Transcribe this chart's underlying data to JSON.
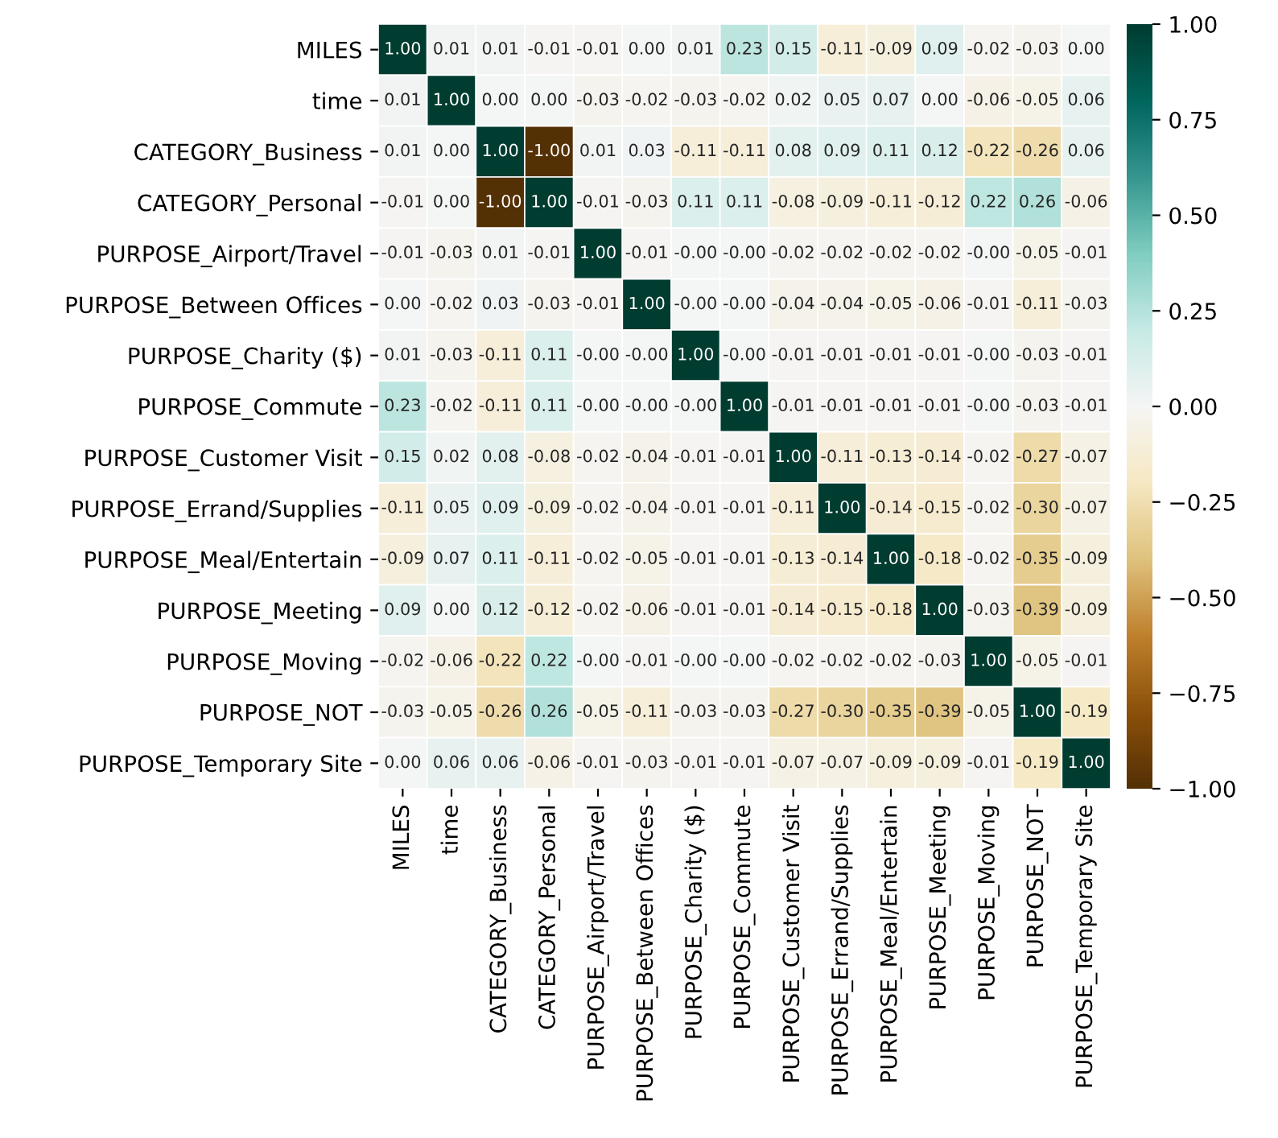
{
  "chart_data": {
    "type": "heatmap",
    "categories": [
      "MILES",
      "time",
      "CATEGORY_Business",
      "CATEGORY_Personal",
      "PURPOSE_Airport/Travel",
      "PURPOSE_Between Offices",
      "PURPOSE_Charity ($)",
      "PURPOSE_Commute",
      "PURPOSE_Customer Visit",
      "PURPOSE_Errand/Supplies",
      "PURPOSE_Meal/Entertain",
      "PURPOSE_Meeting",
      "PURPOSE_Moving",
      "PURPOSE_NOT",
      "PURPOSE_Temporary Site"
    ],
    "y_categories": [
      "MILES",
      "time",
      "CATEGORY_Business",
      "CATEGORY_Personal",
      "PURPOSE_Airport/Travel",
      "PURPOSE_Between Offices",
      "PURPOSE_Charity ($)",
      "PURPOSE_Commute",
      "PURPOSE_Customer Visit",
      "PURPOSE_Errand/Supplies",
      "PURPOSE_Meal/Entertain",
      "PURPOSE_Meeting",
      "PURPOSE_Moving",
      "PURPOSE_NOT",
      "PURPOSE_Temporary Site"
    ],
    "cells": [
      [
        1.0,
        0.01,
        0.01,
        -0.01,
        -0.01,
        0.0,
        0.01,
        0.23,
        0.15,
        -0.11,
        -0.09,
        0.09,
        -0.02,
        -0.03,
        0.0
      ],
      [
        0.01,
        1.0,
        0.0,
        0.0,
        -0.03,
        -0.02,
        -0.03,
        -0.02,
        0.02,
        0.05,
        0.07,
        0.0,
        -0.06,
        -0.05,
        0.06
      ],
      [
        0.01,
        0.0,
        1.0,
        -1.0,
        0.01,
        0.03,
        -0.11,
        -0.11,
        0.08,
        0.09,
        0.11,
        0.12,
        -0.22,
        -0.26,
        0.06
      ],
      [
        -0.01,
        0.0,
        -1.0,
        1.0,
        -0.01,
        -0.03,
        0.11,
        0.11,
        -0.08,
        -0.09,
        -0.11,
        -0.12,
        0.22,
        0.26,
        -0.06
      ],
      [
        -0.01,
        -0.03,
        0.01,
        -0.01,
        1.0,
        -0.01,
        -0.0,
        -0.0,
        -0.02,
        -0.02,
        -0.02,
        -0.02,
        -0.0,
        -0.05,
        -0.01
      ],
      [
        0.0,
        -0.02,
        0.03,
        -0.03,
        -0.01,
        1.0,
        -0.0,
        -0.0,
        -0.04,
        -0.04,
        -0.05,
        -0.06,
        -0.01,
        -0.11,
        -0.03
      ],
      [
        0.01,
        -0.03,
        -0.11,
        0.11,
        -0.0,
        -0.0,
        1.0,
        -0.0,
        -0.01,
        -0.01,
        -0.01,
        -0.01,
        -0.0,
        -0.03,
        -0.01
      ],
      [
        0.23,
        -0.02,
        -0.11,
        0.11,
        -0.0,
        -0.0,
        -0.0,
        1.0,
        -0.01,
        -0.01,
        -0.01,
        -0.01,
        -0.0,
        -0.03,
        -0.01
      ],
      [
        0.15,
        0.02,
        0.08,
        -0.08,
        -0.02,
        -0.04,
        -0.01,
        -0.01,
        1.0,
        -0.11,
        -0.13,
        -0.14,
        -0.02,
        -0.27,
        -0.07
      ],
      [
        -0.11,
        0.05,
        0.09,
        -0.09,
        -0.02,
        -0.04,
        -0.01,
        -0.01,
        -0.11,
        1.0,
        -0.14,
        -0.15,
        -0.02,
        -0.3,
        -0.07
      ],
      [
        -0.09,
        0.07,
        0.11,
        -0.11,
        -0.02,
        -0.05,
        -0.01,
        -0.01,
        -0.13,
        -0.14,
        1.0,
        -0.18,
        -0.02,
        -0.35,
        -0.09
      ],
      [
        0.09,
        0.0,
        0.12,
        -0.12,
        -0.02,
        -0.06,
        -0.01,
        -0.01,
        -0.14,
        -0.15,
        -0.18,
        1.0,
        -0.03,
        -0.39,
        -0.09
      ],
      [
        -0.02,
        -0.06,
        -0.22,
        0.22,
        -0.0,
        -0.01,
        -0.0,
        -0.0,
        -0.02,
        -0.02,
        -0.02,
        -0.03,
        1.0,
        -0.05,
        -0.01
      ],
      [
        -0.03,
        -0.05,
        -0.26,
        0.26,
        -0.05,
        -0.11,
        -0.03,
        -0.03,
        -0.27,
        -0.3,
        -0.35,
        -0.39,
        -0.05,
        1.0,
        -0.19
      ],
      [
        0.0,
        0.06,
        0.06,
        -0.06,
        -0.01,
        -0.03,
        -0.01,
        -0.01,
        -0.07,
        -0.07,
        -0.09,
        -0.09,
        -0.01,
        -0.19,
        1.0
      ]
    ],
    "cell_labels": [
      [
        "1.00",
        "0.01",
        "0.01",
        "-0.01",
        "-0.01",
        "0.00",
        "0.01",
        "0.23",
        "0.15",
        "-0.11",
        "-0.09",
        "0.09",
        "-0.02",
        "-0.03",
        "0.00"
      ],
      [
        "0.01",
        "1.00",
        "0.00",
        "0.00",
        "-0.03",
        "-0.02",
        "-0.03",
        "-0.02",
        "0.02",
        "0.05",
        "0.07",
        "0.00",
        "-0.06",
        "-0.05",
        "0.06"
      ],
      [
        "0.01",
        "0.00",
        "1.00",
        "-1.00",
        "0.01",
        "0.03",
        "-0.11",
        "-0.11",
        "0.08",
        "0.09",
        "0.11",
        "0.12",
        "-0.22",
        "-0.26",
        "0.06"
      ],
      [
        "-0.01",
        "0.00",
        "-1.00",
        "1.00",
        "-0.01",
        "-0.03",
        "0.11",
        "0.11",
        "-0.08",
        "-0.09",
        "-0.11",
        "-0.12",
        "0.22",
        "0.26",
        "-0.06"
      ],
      [
        "-0.01",
        "-0.03",
        "0.01",
        "-0.01",
        "1.00",
        "-0.01",
        "-0.00",
        "-0.00",
        "-0.02",
        "-0.02",
        "-0.02",
        "-0.02",
        "-0.00",
        "-0.05",
        "-0.01"
      ],
      [
        "0.00",
        "-0.02",
        "0.03",
        "-0.03",
        "-0.01",
        "1.00",
        "-0.00",
        "-0.00",
        "-0.04",
        "-0.04",
        "-0.05",
        "-0.06",
        "-0.01",
        "-0.11",
        "-0.03"
      ],
      [
        "0.01",
        "-0.03",
        "-0.11",
        "0.11",
        "-0.00",
        "-0.00",
        "1.00",
        "-0.00",
        "-0.01",
        "-0.01",
        "-0.01",
        "-0.01",
        "-0.00",
        "-0.03",
        "-0.01"
      ],
      [
        "0.23",
        "-0.02",
        "-0.11",
        "0.11",
        "-0.00",
        "-0.00",
        "-0.00",
        "1.00",
        "-0.01",
        "-0.01",
        "-0.01",
        "-0.01",
        "-0.00",
        "-0.03",
        "-0.01"
      ],
      [
        "0.15",
        "0.02",
        "0.08",
        "-0.08",
        "-0.02",
        "-0.04",
        "-0.01",
        "-0.01",
        "1.00",
        "-0.11",
        "-0.13",
        "-0.14",
        "-0.02",
        "-0.27",
        "-0.07"
      ],
      [
        "-0.11",
        "0.05",
        "0.09",
        "-0.09",
        "-0.02",
        "-0.04",
        "-0.01",
        "-0.01",
        "-0.11",
        "1.00",
        "-0.14",
        "-0.15",
        "-0.02",
        "-0.30",
        "-0.07"
      ],
      [
        "-0.09",
        "0.07",
        "0.11",
        "-0.11",
        "-0.02",
        "-0.05",
        "-0.01",
        "-0.01",
        "-0.13",
        "-0.14",
        "1.00",
        "-0.18",
        "-0.02",
        "-0.35",
        "-0.09"
      ],
      [
        "0.09",
        "0.00",
        "0.12",
        "-0.12",
        "-0.02",
        "-0.06",
        "-0.01",
        "-0.01",
        "-0.14",
        "-0.15",
        "-0.18",
        "1.00",
        "-0.03",
        "-0.39",
        "-0.09"
      ],
      [
        "-0.02",
        "-0.06",
        "-0.22",
        "0.22",
        "-0.00",
        "-0.01",
        "-0.00",
        "-0.00",
        "-0.02",
        "-0.02",
        "-0.02",
        "-0.03",
        "1.00",
        "-0.05",
        "-0.01"
      ],
      [
        "-0.03",
        "-0.05",
        "-0.26",
        "0.26",
        "-0.05",
        "-0.11",
        "-0.03",
        "-0.03",
        "-0.27",
        "-0.30",
        "-0.35",
        "-0.39",
        "-0.05",
        "1.00",
        "-0.19"
      ],
      [
        "0.00",
        "0.06",
        "0.06",
        "-0.06",
        "-0.01",
        "-0.03",
        "-0.01",
        "-0.01",
        "-0.07",
        "-0.07",
        "-0.09",
        "-0.09",
        "-0.01",
        "-0.19",
        "1.00"
      ]
    ],
    "clim": [
      -1.0,
      1.0
    ],
    "cticks": [
      {
        "value": 1.0,
        "label": "1.00"
      },
      {
        "value": 0.75,
        "label": "0.75"
      },
      {
        "value": 0.5,
        "label": "0.50"
      },
      {
        "value": 0.25,
        "label": "0.25"
      },
      {
        "value": 0.0,
        "label": "0.00"
      },
      {
        "value": -0.25,
        "label": "−0.25"
      },
      {
        "value": -0.5,
        "label": "−0.50"
      },
      {
        "value": -0.75,
        "label": "−0.75"
      },
      {
        "value": -1.0,
        "label": "−1.00"
      }
    ],
    "data_labels": true
  }
}
